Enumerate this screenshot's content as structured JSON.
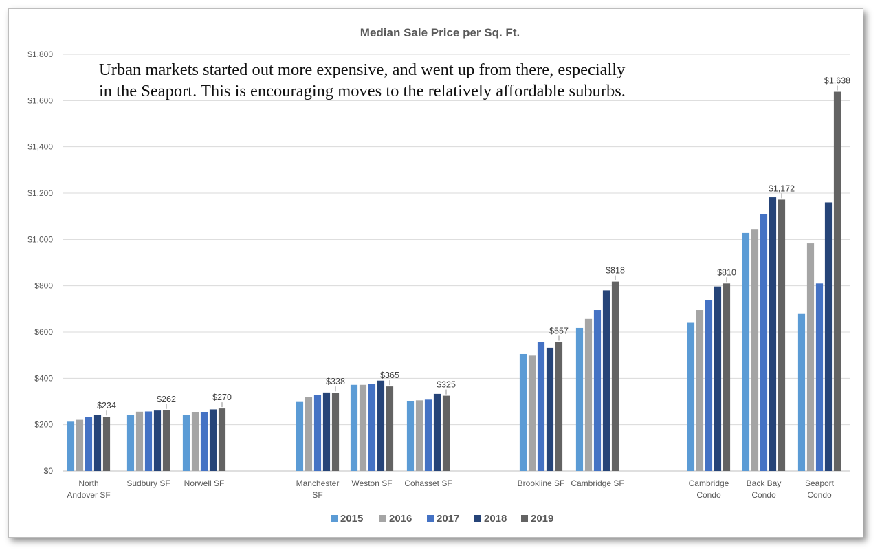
{
  "annotation": "Urban markets started out more expensive, and went up from there, especially\nin the Seaport.  This is encouraging moves to the relatively affordable suburbs.",
  "colors": {
    "2015": "#5b9bd5",
    "2016": "#a5a5a5",
    "2017": "#4472c4",
    "2018": "#264478",
    "2019": "#636363",
    "grid": "#d9d9d9",
    "axis_text": "#595959",
    "title_text": "#595959"
  },
  "chart_data": {
    "type": "bar",
    "title": "Median Sale Price per Sq. Ft.",
    "xlabel": "",
    "ylabel": "",
    "ylim": [
      0,
      1800
    ],
    "yticks": [
      0,
      200,
      400,
      600,
      800,
      1000,
      1200,
      1400,
      1600,
      1800
    ],
    "ytick_labels": [
      "$0",
      "$200",
      "$400",
      "$600",
      "$800",
      "$1,000",
      "$1,200",
      "$1,400",
      "$1,600",
      "$1,800"
    ],
    "grid": true,
    "legend": "bottom",
    "categories": [
      "North\nAndover SF",
      "Sudbury SF",
      "Norwell SF",
      "Manchester\nSF",
      "Weston SF",
      "Cohasset SF",
      "Brookline SF",
      "Cambridge SF",
      "Cambridge\nCondo",
      "Back Bay\nCondo",
      "Seaport\nCondo"
    ],
    "groups": [
      [
        0,
        1,
        2
      ],
      [
        3,
        4,
        5
      ],
      [
        6,
        7
      ],
      [
        8,
        9,
        10
      ]
    ],
    "series": [
      {
        "name": "2015",
        "values": [
          213,
          243,
          243,
          298,
          372,
          303,
          505,
          618,
          640,
          1028,
          678
        ]
      },
      {
        "name": "2016",
        "values": [
          221,
          256,
          254,
          320,
          372,
          305,
          498,
          657,
          695,
          1045,
          983
        ]
      },
      {
        "name": "2017",
        "values": [
          232,
          257,
          255,
          328,
          377,
          308,
          558,
          695,
          738,
          1108,
          810
        ]
      },
      {
        "name": "2018",
        "values": [
          243,
          261,
          266,
          339,
          390,
          333,
          532,
          780,
          797,
          1182,
          1160
        ]
      },
      {
        "name": "2019",
        "values": [
          234,
          262,
          270,
          338,
          365,
          325,
          557,
          818,
          810,
          1172,
          1638
        ]
      }
    ],
    "data_labels": [
      {
        "category": 0,
        "series": 4,
        "text": "$234"
      },
      {
        "category": 1,
        "series": 4,
        "text": "$262"
      },
      {
        "category": 2,
        "series": 4,
        "text": "$270"
      },
      {
        "category": 3,
        "series": 4,
        "text": "$338"
      },
      {
        "category": 4,
        "series": 4,
        "text": "$365"
      },
      {
        "category": 5,
        "series": 4,
        "text": "$325"
      },
      {
        "category": 6,
        "series": 4,
        "text": "$557"
      },
      {
        "category": 7,
        "series": 4,
        "text": "$818"
      },
      {
        "category": 8,
        "series": 4,
        "text": "$810"
      },
      {
        "category": 9,
        "series": 4,
        "text": "$1,172"
      },
      {
        "category": 10,
        "series": 4,
        "text": "$1,638"
      }
    ]
  }
}
